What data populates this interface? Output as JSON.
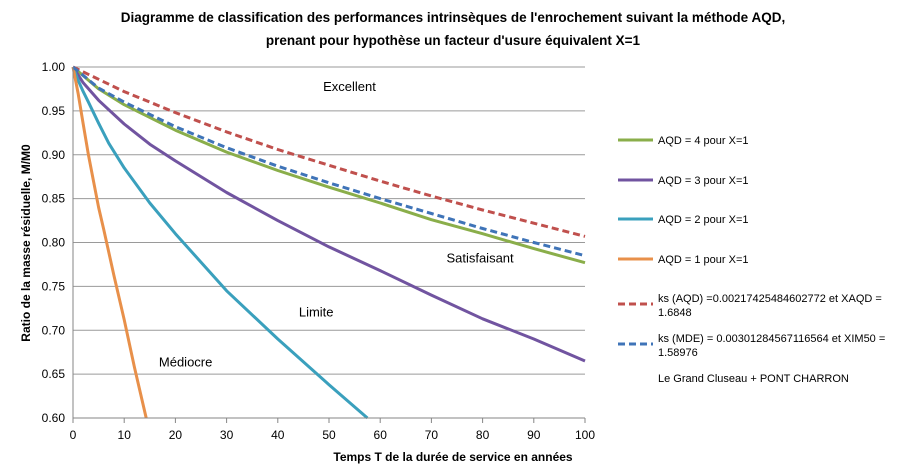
{
  "chart_data": {
    "type": "line",
    "title_line1": "Diagramme de classification des performances intrinsèques de l'enrochement suivant la méthode AQD,",
    "title_line2": "prenant pour hypothèse un facteur d'usure équivalent X=1",
    "xlabel": "Temps T de la durée de service en  années",
    "ylabel": "Ratio de la masse résiduelle, M/M0",
    "xlim": [
      0,
      100
    ],
    "ylim": [
      0.6,
      1.0
    ],
    "x_ticks": [
      "0",
      "10",
      "20",
      "30",
      "40",
      "50",
      "60",
      "70",
      "80",
      "90",
      "100"
    ],
    "y_ticks": [
      "0.60",
      "0.65",
      "0.70",
      "0.75",
      "0.80",
      "0.85",
      "0.90",
      "0.95",
      "1.00"
    ],
    "grid": "horizontal",
    "legend_position": "right",
    "annotations": [
      {
        "text": "Excellent",
        "x": 54,
        "y": 0.977
      },
      {
        "text": "Satisfaisant",
        "x": 79.5,
        "y": 0.782
      },
      {
        "text": "Limite",
        "x": 47.5,
        "y": 0.72
      },
      {
        "text": "Médiocre",
        "x": 22,
        "y": 0.663
      }
    ],
    "series": [
      {
        "name": "AQD = 4 pour X=1",
        "color": "#8aae4a",
        "dash": "solid",
        "x": [
          0,
          5,
          10,
          20,
          30,
          40,
          50,
          60,
          70,
          80,
          90,
          100
        ],
        "y": [
          1.0,
          0.975,
          0.957,
          0.928,
          0.903,
          0.882,
          0.863,
          0.845,
          0.826,
          0.81,
          0.793,
          0.777
        ]
      },
      {
        "name": "AQD = 3 pour X=1",
        "color": "#7154a0",
        "dash": "solid",
        "x": [
          0,
          2,
          5,
          10,
          15,
          20,
          30,
          40,
          50,
          60,
          70,
          80,
          90,
          100
        ],
        "y": [
          1.0,
          0.982,
          0.962,
          0.935,
          0.912,
          0.893,
          0.857,
          0.825,
          0.795,
          0.768,
          0.74,
          0.713,
          0.69,
          0.665
        ]
      },
      {
        "name": "AQD = 2 pour X=1",
        "color": "#3aa0bd",
        "dash": "solid",
        "x": [
          0,
          1,
          2,
          3,
          5,
          7,
          10,
          15,
          20,
          30,
          40,
          50,
          57.5
        ],
        "y": [
          1.0,
          0.985,
          0.972,
          0.96,
          0.936,
          0.913,
          0.885,
          0.845,
          0.81,
          0.745,
          0.69,
          0.638,
          0.6
        ]
      },
      {
        "name": "AQD = 1 pour X=1",
        "color": "#e8904a",
        "dash": "solid",
        "x": [
          0,
          1,
          2,
          3,
          4,
          5,
          6,
          8,
          10,
          12,
          14.3
        ],
        "y": [
          1.0,
          0.97,
          0.935,
          0.9,
          0.87,
          0.84,
          0.815,
          0.762,
          0.712,
          0.658,
          0.6
        ]
      },
      {
        "name": "ks (AQD) =0.00217425484602772    et    XAQD = 1.6848",
        "color": "#c0504d",
        "dash": "dashed",
        "x": [
          0,
          10,
          20,
          30,
          40,
          50,
          60,
          70,
          80,
          90,
          100
        ],
        "y": [
          1.0,
          0.972,
          0.948,
          0.926,
          0.906,
          0.888,
          0.87,
          0.853,
          0.837,
          0.822,
          0.807
        ]
      },
      {
        "name": "ks (MDE) = 0.00301284567116564    et XIM50 = 1.58976",
        "color": "#3f74b8",
        "dash": "dashed",
        "x": [
          0,
          5,
          10,
          20,
          30,
          40,
          50,
          60,
          70,
          80,
          90,
          100
        ],
        "y": [
          1.0,
          0.976,
          0.96,
          0.932,
          0.908,
          0.887,
          0.868,
          0.85,
          0.833,
          0.816,
          0.8,
          0.785
        ]
      }
    ],
    "legend_note": "Le Grand Cluseau + PONT CHARRON"
  }
}
